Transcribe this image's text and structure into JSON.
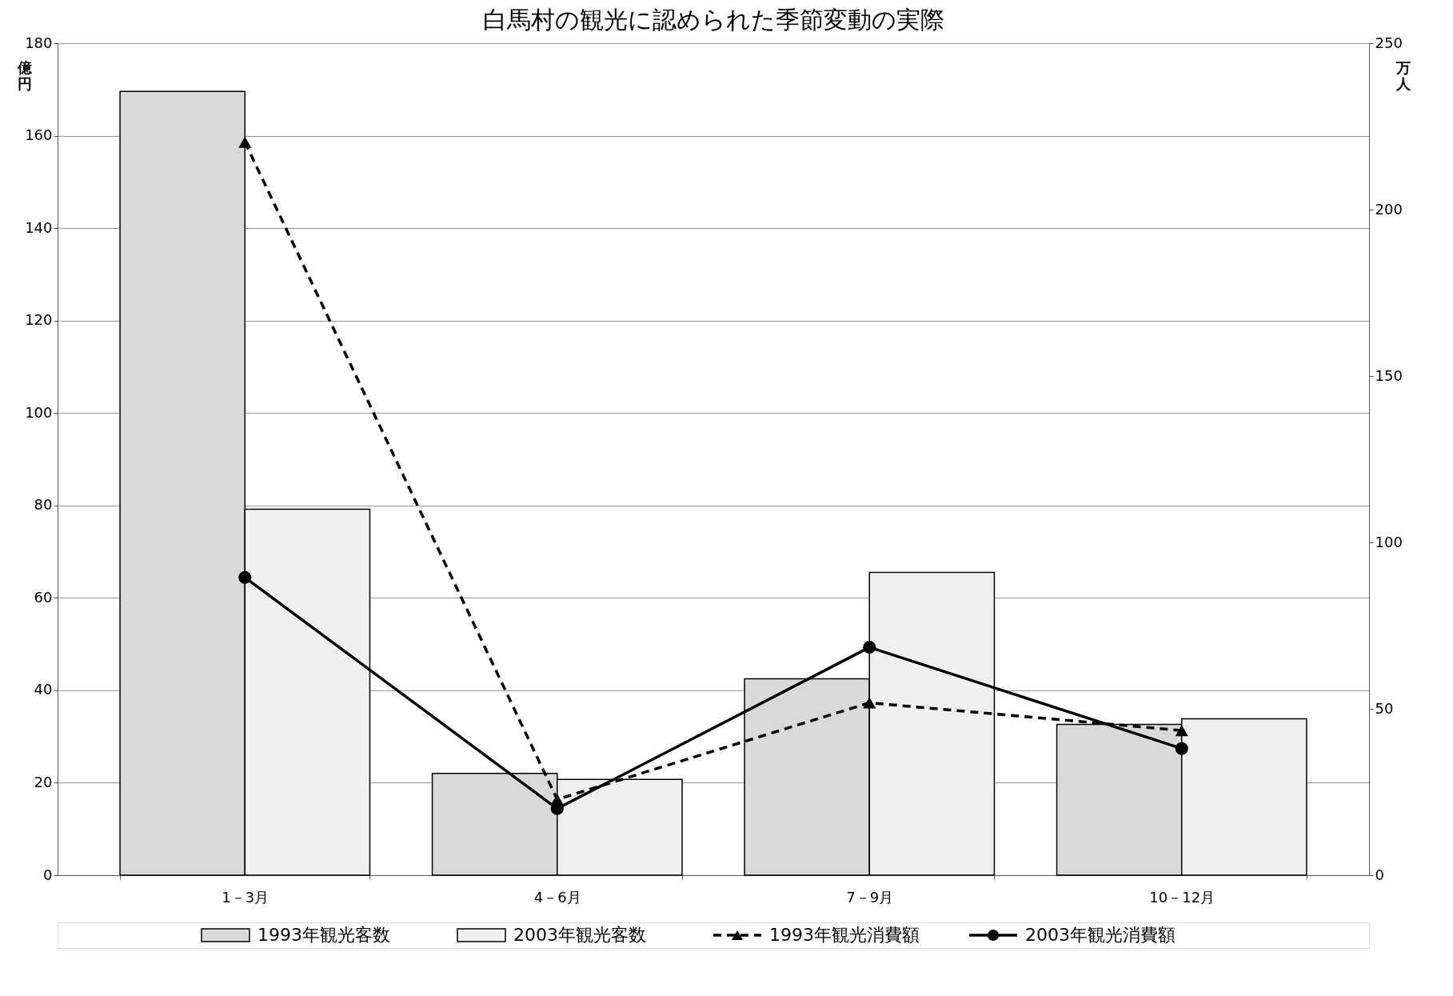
{
  "chart_data": {
    "type": "bar",
    "title": "白馬村の観光に認められた季節変動の実際",
    "categories": [
      "1－3月",
      "4－6月",
      "7－9月",
      "10－12月"
    ],
    "ylabel": "億円",
    "y2label": "万人",
    "ylim": [
      0,
      180
    ],
    "yticks": [
      0,
      20,
      40,
      60,
      80,
      100,
      120,
      140,
      160,
      180
    ],
    "y2lim": [
      0,
      250
    ],
    "y2ticks": [
      0,
      50,
      100,
      150,
      200,
      250
    ],
    "grid": "y",
    "legend": "bottom",
    "series": [
      {
        "name": "1993年観光客数",
        "axis": "y2",
        "color": "#d9d9d9",
        "values": [
          235.5,
          30.6,
          59,
          45.3
        ]
      },
      {
        "name": "2003年観光客数",
        "axis": "y2",
        "color": "#f0f0f0",
        "values": [
          110,
          28.8,
          91,
          47
        ]
      },
      {
        "name": "1993年観光消費額",
        "type": "line",
        "color": "#000000",
        "marker": "triangle",
        "line_style": "dashed",
        "values": [
          158.6,
          16.4,
          37.3,
          31.3
        ]
      },
      {
        "name": "2003年観光消費額",
        "type": "line",
        "color": "#000000",
        "marker": "circle",
        "line_style": "solid",
        "values": [
          64.4,
          14.4,
          49.3,
          27.4
        ]
      }
    ]
  }
}
